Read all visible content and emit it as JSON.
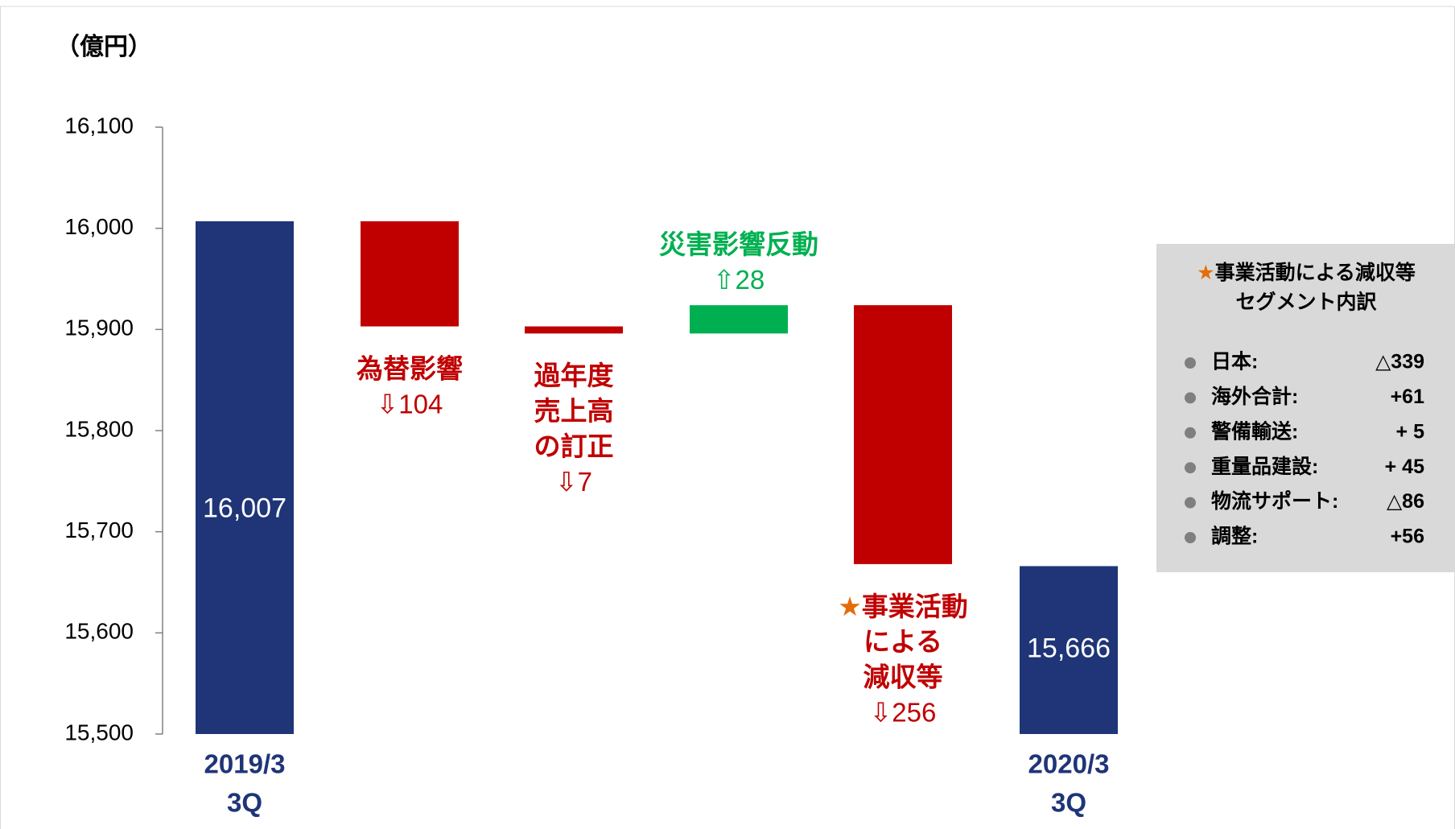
{
  "chart_data": {
    "type": "waterfall",
    "y_label": "（億円）",
    "categories": [
      [
        "2019/3",
        "3Q"
      ],
      [
        "為替影響"
      ],
      [
        "過年度",
        "売上高",
        "の訂正"
      ],
      [
        "災害影響反動"
      ],
      [
        "★事業活動",
        "による",
        "減収等"
      ],
      [
        "2020/3",
        "3Q"
      ]
    ],
    "values": [
      16007,
      -104,
      -7,
      28,
      -256,
      15666
    ],
    "value_labels": [
      "16,007",
      "⇩104",
      "⇩7",
      "⇧28",
      "⇩256",
      "15,666"
    ],
    "is_total": [
      true,
      false,
      false,
      false,
      false,
      true
    ],
    "total_color": "#1f3578",
    "decrease_color": "#c00000",
    "increase_color": "#00b050",
    "ylim": [
      15500,
      16100
    ],
    "yticks": [
      {
        "value": 15500,
        "label": "15,500"
      },
      {
        "value": 15600,
        "label": "15,600"
      },
      {
        "value": 15700,
        "label": "15,700"
      },
      {
        "value": 15800,
        "label": "15,800"
      },
      {
        "value": 15900,
        "label": "15,900"
      },
      {
        "value": 16000,
        "label": "16,000"
      },
      {
        "value": 16100,
        "label": "16,100"
      }
    ]
  },
  "note": {
    "title": [
      "★事業活動による減収等",
      "セグメント内訳"
    ],
    "items": [
      {
        "label": "日本:",
        "value": "△339"
      },
      {
        "label": "海外合計:",
        "value": "+61"
      },
      {
        "label": "警備輸送:",
        "value": "+ 5"
      },
      {
        "label": "重量品建設:",
        "value": "+ 45"
      },
      {
        "label": "物流サポート:",
        "value": "△86"
      },
      {
        "label": "調整:",
        "value": "+56"
      }
    ]
  }
}
